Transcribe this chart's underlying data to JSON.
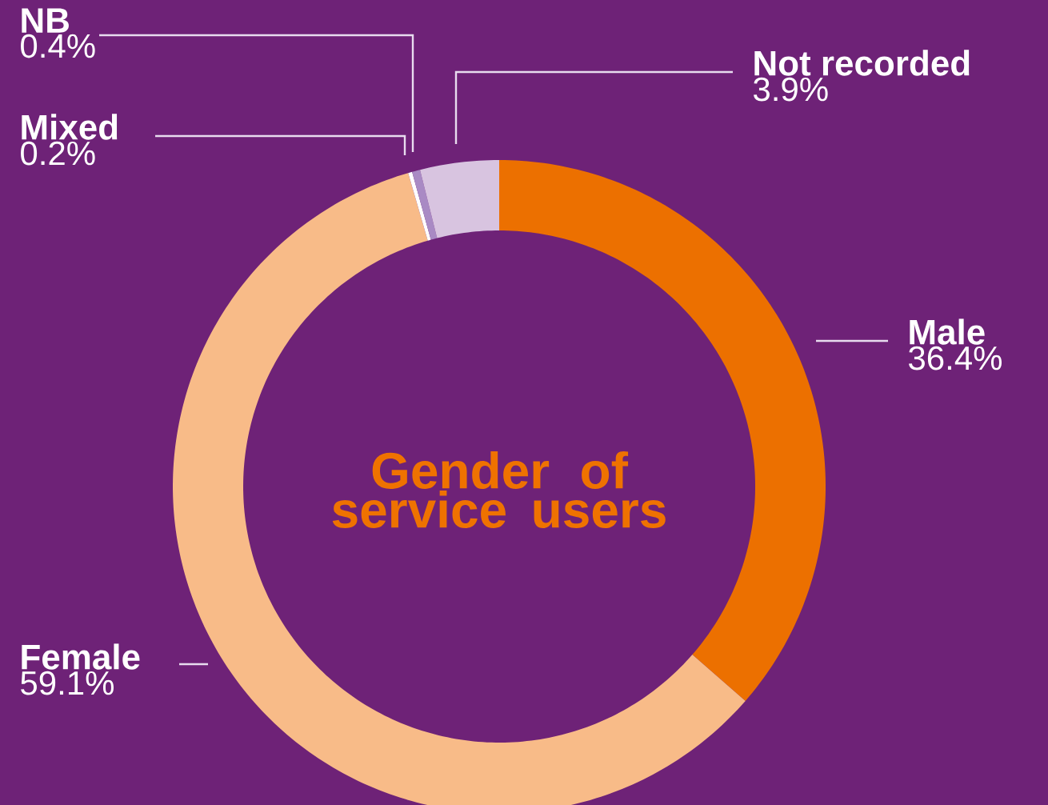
{
  "chart_data": {
    "type": "donut",
    "title": "Gender of service users",
    "categories": [
      "Male",
      "Female",
      "Mixed",
      "NB",
      "Not recorded"
    ],
    "values": [
      36.4,
      59.1,
      0.2,
      0.4,
      3.9
    ],
    "value_labels": [
      "36.4%",
      "59.1%",
      "0.2%",
      "0.4%",
      "3.9%"
    ],
    "colors": [
      "#ec7000",
      "#f8bb88",
      "#ffffff",
      "#a98ac4",
      "#d8c4e0"
    ]
  }
}
